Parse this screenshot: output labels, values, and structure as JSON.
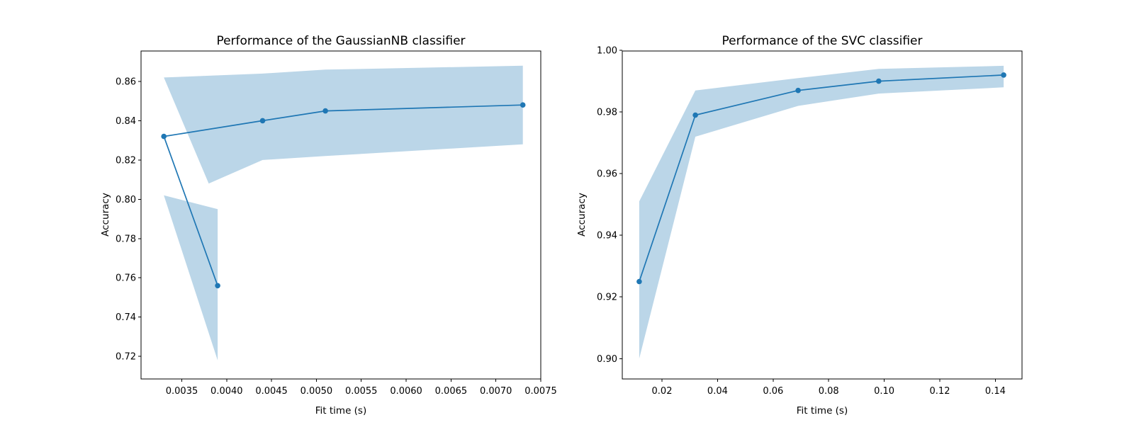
{
  "figure": {
    "background_color": "#ffffff",
    "line_color": "#1f77b4",
    "marker_color": "#1f77b4",
    "band_color": "#1f77b4",
    "band_opacity": 0.3,
    "spine_color": "#000000",
    "text_color": "#000000"
  },
  "chart_data": [
    {
      "type": "line",
      "title": "Performance of the GaussianNB classifier",
      "xlabel": "Fit time (s)",
      "ylabel": "Accuracy",
      "xlim": [
        0.003046,
        0.0075
      ],
      "ylim": [
        0.7085,
        0.8755
      ],
      "grid": false,
      "legend_position": "none",
      "xticks": [
        0.0035,
        0.004,
        0.0045,
        0.005,
        0.0055,
        0.006,
        0.0065,
        0.007,
        0.0075
      ],
      "xtick_labels": [
        "0.0035",
        "0.0040",
        "0.0045",
        "0.0050",
        "0.0055",
        "0.0060",
        "0.0065",
        "0.0070",
        "0.0075"
      ],
      "yticks": [
        0.72,
        0.74,
        0.76,
        0.78,
        0.8,
        0.82,
        0.84,
        0.86
      ],
      "ytick_labels": [
        "0.72",
        "0.74",
        "0.76",
        "0.78",
        "0.80",
        "0.82",
        "0.84",
        "0.86"
      ],
      "series": [
        {
          "points_x": [
            0.0039,
            0.0033,
            0.0044,
            0.0051,
            0.0073
          ],
          "points_y": [
            0.756,
            0.832,
            0.84,
            0.845,
            0.848
          ],
          "std": [
            0.038,
            0.03,
            0.022,
            0.022,
            0.02
          ],
          "band_polygons": [
            [
              [
                0.0033,
                0.802
              ],
              [
                0.0039,
                0.795
              ],
              [
                0.0039,
                0.718
              ]
            ],
            [
              [
                0.0033,
                0.862
              ],
              [
                0.0044,
                0.864
              ],
              [
                0.0051,
                0.866
              ],
              [
                0.0073,
                0.868
              ],
              [
                0.0073,
                0.828
              ],
              [
                0.0051,
                0.822
              ],
              [
                0.0044,
                0.82
              ],
              [
                0.0038,
                0.808
              ]
            ]
          ]
        }
      ]
    },
    {
      "type": "line",
      "title": "Performance of the SVC classifier",
      "xlabel": "Fit time (s)",
      "ylabel": "Accuracy",
      "xlim": [
        0.0057,
        0.1496
      ],
      "ylim": [
        0.8934,
        0.9998
      ],
      "grid": false,
      "legend_position": "none",
      "xticks": [
        0.02,
        0.04,
        0.06,
        0.08,
        0.1,
        0.12,
        0.14
      ],
      "xtick_labels": [
        "0.02",
        "0.04",
        "0.06",
        "0.08",
        "0.10",
        "0.12",
        "0.14"
      ],
      "yticks": [
        0.9,
        0.92,
        0.94,
        0.96,
        0.98,
        1.0
      ],
      "ytick_labels": [
        "0.90",
        "0.92",
        "0.94",
        "0.96",
        "0.98",
        "1.00"
      ],
      "series": [
        {
          "points_x": [
            0.0118,
            0.032,
            0.069,
            0.098,
            0.143
          ],
          "points_y": [
            0.925,
            0.979,
            0.987,
            0.99,
            0.992
          ],
          "std": [
            0.0255,
            0.0075,
            0.0046,
            0.004,
            0.0035
          ],
          "band_polygons": [
            [
              [
                0.0118,
                0.951
              ],
              [
                0.032,
                0.987
              ],
              [
                0.069,
                0.991
              ],
              [
                0.098,
                0.994
              ],
              [
                0.143,
                0.995
              ],
              [
                0.143,
                0.988
              ],
              [
                0.098,
                0.986
              ],
              [
                0.069,
                0.982
              ],
              [
                0.032,
                0.972
              ],
              [
                0.0118,
                0.9
              ]
            ]
          ]
        }
      ]
    }
  ]
}
